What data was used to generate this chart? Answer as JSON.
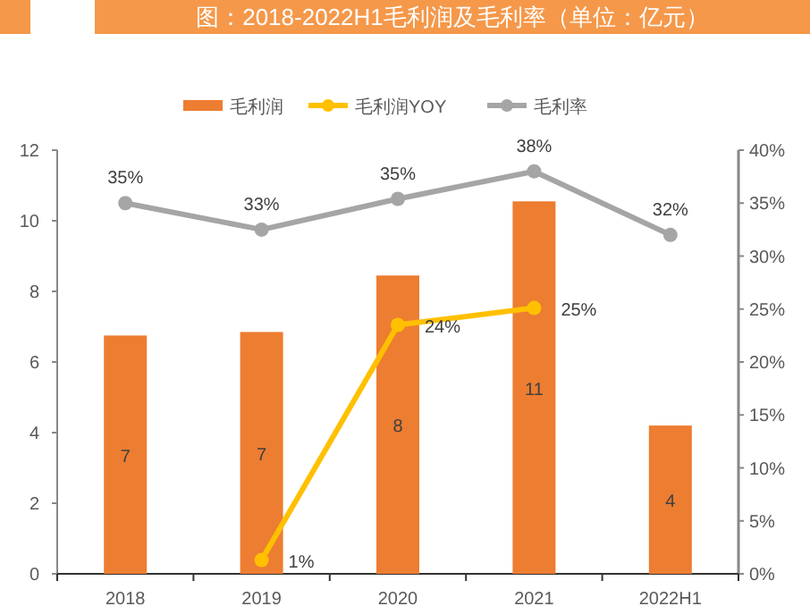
{
  "chart_data": {
    "type": "bar",
    "title": "图：2018-2022H1毛利润及毛利率（单位：亿元）",
    "categories": [
      "2018",
      "2019",
      "2020",
      "2021",
      "2022H1"
    ],
    "series": [
      {
        "name": "毛利润",
        "color": "#ed7d31",
        "values": [
          6.75,
          6.85,
          8.45,
          10.55,
          4.2
        ],
        "value_labels": [
          "7",
          "7",
          "8",
          "11",
          "4"
        ]
      },
      {
        "name": "毛利润YOY",
        "type": "line",
        "axis": "y2",
        "color": "#ffc000",
        "values": [
          null,
          1.3,
          23.5,
          25.1,
          null
        ],
        "value_labels": [
          null,
          "1%",
          "24%",
          "25%",
          null
        ]
      },
      {
        "name": "毛利率",
        "type": "line",
        "axis": "y2",
        "color": "#a5a5a5",
        "values": [
          35,
          32.5,
          35.4,
          38,
          32
        ],
        "value_labels": [
          "35%",
          "33%",
          "35%",
          "38%",
          "32%"
        ]
      }
    ],
    "ylim": [
      0,
      12
    ],
    "yticks": [
      0,
      2,
      4,
      6,
      8,
      10,
      12
    ],
    "y2lim": [
      0,
      40
    ],
    "y2ticks": [
      {
        "value": 0,
        "label": "0%"
      },
      {
        "value": 5,
        "label": "5%"
      },
      {
        "value": 10,
        "label": "10%"
      },
      {
        "value": 15,
        "label": "15%"
      },
      {
        "value": 20,
        "label": "20%"
      },
      {
        "value": 25,
        "label": "25%"
      },
      {
        "value": 30,
        "label": "30%"
      },
      {
        "value": 35,
        "label": "35%"
      },
      {
        "value": 40,
        "label": "40%"
      }
    ],
    "legend": "top",
    "marker": "circle",
    "line_style": "solid",
    "grid": false
  }
}
